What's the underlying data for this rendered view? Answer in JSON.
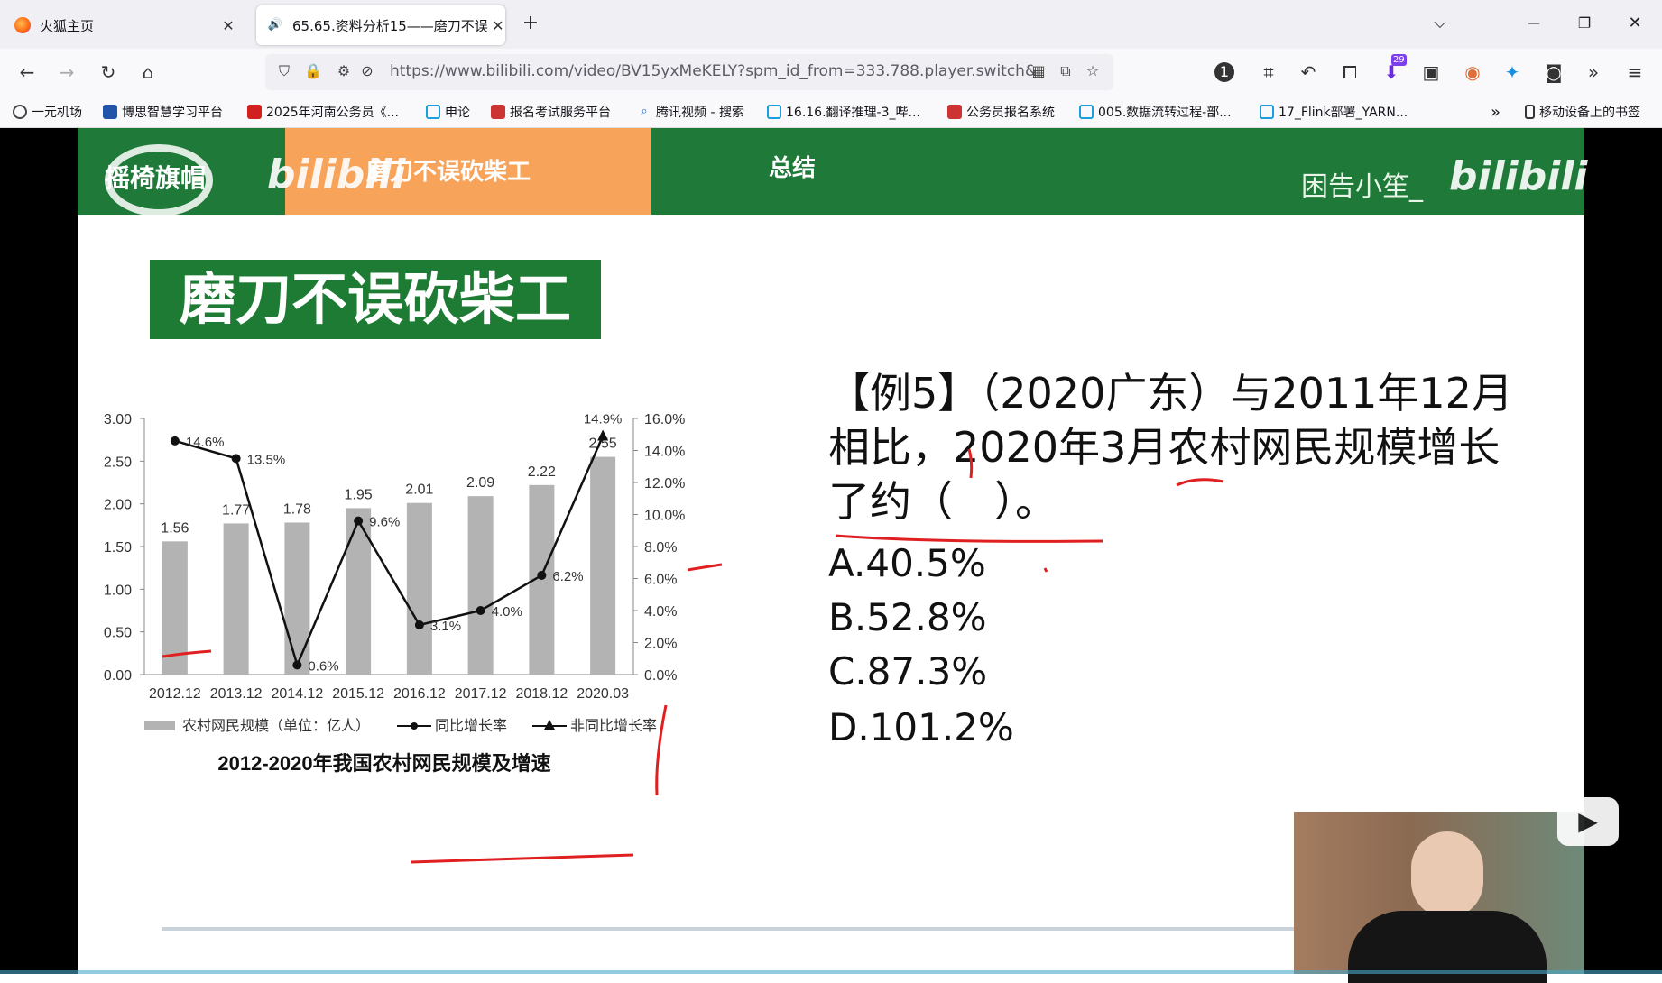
{
  "tabs": [
    {
      "label": "火狐主页",
      "close": "✕"
    },
    {
      "label": "65.65.资料分析15——磨刀不误",
      "close": "✕"
    }
  ],
  "new_tab": "+",
  "window": {
    "dropdown": "⌵",
    "minimize": "—",
    "restore": "❐",
    "close": "✕"
  },
  "nav": {
    "back": "←",
    "forward": "→",
    "reload": "↻",
    "home": "⌂",
    "url": "https://www.bilibili.com/video/BV15yxMeKELY?spm_id_from=333.788.player.switch&",
    "ext_badge": "29"
  },
  "bookmarks": [
    {
      "label": "一元机场"
    },
    {
      "label": "博思智慧学习平台"
    },
    {
      "label": "2025年河南公务员《..."
    },
    {
      "label": "申论"
    },
    {
      "label": "报名考试服务平台"
    },
    {
      "label": "腾讯视频 - 搜索"
    },
    {
      "label": "16.16.翻译推理-3_哔..."
    },
    {
      "label": "公务员报名系统"
    },
    {
      "label": "005.数据流转过程-部..."
    },
    {
      "label": "17_Flink部署_YARN..."
    }
  ],
  "bookmarks_more": "»",
  "mobile_bookmarks": "移动设备上的书签",
  "slide": {
    "banner": {
      "logo_text": "摇椅旗帽",
      "bili_left": "bilibili",
      "orange_title": "磨刀不误砍柴工",
      "section": "总结",
      "author": "困告小笙_",
      "bili_right": "bilibili"
    },
    "heading": "磨刀不误砍柴工",
    "question": "【例5】（2020广东）与2011年12月相比，2020年3月农村网民规模增长了约（　）。",
    "options": [
      "A.40.5%",
      "B.52.8%",
      "C.87.3%",
      "D.101.2%"
    ]
  },
  "player": {
    "play_icon": "▶"
  },
  "colors": {
    "banner_green": "#1f7a3a",
    "banner_orange": "#f7a35a",
    "bar_gray": "#b3b3b3",
    "pen_red": "#e02020"
  },
  "chart_data": {
    "type": "bar",
    "title": "2012-2020年我国农村网民规模及增速",
    "categories": [
      "2012.12",
      "2013.12",
      "2014.12",
      "2015.12",
      "2016.12",
      "2017.12",
      "2018.12",
      "2020.03"
    ],
    "series": [
      {
        "name": "农村网民规模（单位：亿人）",
        "type": "bar",
        "values": [
          1.56,
          1.77,
          1.78,
          1.95,
          2.01,
          2.09,
          2.22,
          2.55
        ],
        "axis": "left"
      },
      {
        "name": "同比增长率",
        "type": "line",
        "values": [
          14.6,
          13.5,
          0.6,
          9.6,
          3.1,
          4.0,
          6.2,
          null
        ],
        "labels": [
          "14.6%",
          "13.5%",
          "0.6%",
          "9.6%",
          "3.1%",
          "4.0%",
          "6.2%",
          ""
        ],
        "axis": "right"
      },
      {
        "name": "非同比增长率",
        "type": "line",
        "values": [
          null,
          null,
          null,
          null,
          null,
          null,
          6.2,
          14.9
        ],
        "labels": [
          "",
          "",
          "",
          "",
          "",
          "",
          "",
          "14.9%"
        ],
        "axis": "right"
      }
    ],
    "bar_labels": [
      "1.56",
      "1.77",
      "1.78",
      "1.95",
      "2.01",
      "2.09",
      "2.22",
      "2.55"
    ],
    "ylim_left": [
      0,
      3.0
    ],
    "yticks_left": [
      "0.00",
      "0.50",
      "1.00",
      "1.50",
      "2.00",
      "2.50",
      "3.00"
    ],
    "ylim_right": [
      0,
      16.0
    ],
    "yticks_right": [
      "0.0%",
      "2.0%",
      "4.0%",
      "6.0%",
      "8.0%",
      "10.0%",
      "12.0%",
      "14.0%",
      "16.0%"
    ],
    "legend_position": "bottom",
    "grid": false
  }
}
